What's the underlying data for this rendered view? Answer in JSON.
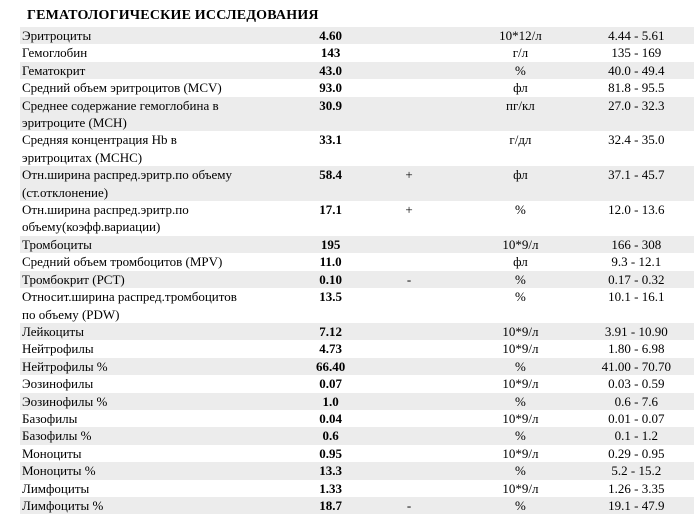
{
  "header": {
    "title": "ГЕМАТОЛОГИЧЕСКИЕ ИССЛЕДОВАНИЯ"
  },
  "table": {
    "rows": [
      {
        "name": [
          "Эритроциты"
        ],
        "value": "4.60",
        "unit": "10*12/л",
        "range": "4.44 - 5.61"
      },
      {
        "name": [
          "Гемоглобин"
        ],
        "value": "143",
        "unit": "г/л",
        "range": "135 - 169"
      },
      {
        "name": [
          "Гематокрит"
        ],
        "value": "43.0",
        "unit": "%",
        "range": "40.0 - 49.4"
      },
      {
        "name": [
          "Средний объем эритроцитов (MCV)"
        ],
        "value": "93.0",
        "unit": "фл",
        "range": "81.8 - 95.5"
      },
      {
        "name": [
          "Среднее содержание гемоглобина в",
          "эритроците (MCH)"
        ],
        "value": "30.9",
        "unit": "пг/кл",
        "range": "27.0 - 32.3"
      },
      {
        "name": [
          "Средняя концентрация Hb в",
          "эритроцитах (MCHC)"
        ],
        "value": "33.1",
        "unit": "г/дл",
        "range": "32.4 - 35.0"
      },
      {
        "name": [
          "Отн.ширина распред.эритр.по объему",
          "(ст.отклонение)"
        ],
        "value": "58.4",
        "flag": "+",
        "unit": "фл",
        "range": "37.1 - 45.7"
      },
      {
        "name": [
          "Отн.ширина распред.эритр.по",
          "объему(коэфф.вариации)"
        ],
        "value": "17.1",
        "flag": "+",
        "unit": "%",
        "range": "12.0 - 13.6"
      },
      {
        "name": [
          "Тромбоциты"
        ],
        "value": "195",
        "unit": "10*9/л",
        "range": "166 - 308"
      },
      {
        "name": [
          "Средний объем тромбоцитов (MPV)"
        ],
        "value": "11.0",
        "unit": "фл",
        "range": "9.3 - 12.1"
      },
      {
        "name": [
          "Тромбокрит (PCT)"
        ],
        "value": "0.10",
        "flag": "-",
        "unit": "%",
        "range": "0.17 - 0.32"
      },
      {
        "name": [
          "Относит.ширина распред.тромбоцитов",
          "по объему (PDW)"
        ],
        "value": "13.5",
        "unit": "%",
        "range": "10.1 - 16.1"
      },
      {
        "name": [
          "Лейкоциты"
        ],
        "value": "7.12",
        "unit": "10*9/л",
        "range": "3.91 - 10.90"
      },
      {
        "name": [
          "Нейтрофилы"
        ],
        "value": "4.73",
        "unit": "10*9/л",
        "range": "1.80 - 6.98"
      },
      {
        "name": [
          "Нейтрофилы %"
        ],
        "value": "66.40",
        "unit": "%",
        "range": "41.00 - 70.70"
      },
      {
        "name": [
          "Эозинофилы"
        ],
        "value": "0.07",
        "unit": "10*9/л",
        "range": "0.03 - 0.59"
      },
      {
        "name": [
          "Эозинофилы %"
        ],
        "value": "1.0",
        "unit": "%",
        "range": "0.6 - 7.6"
      },
      {
        "name": [
          "Базофилы"
        ],
        "value": "0.04",
        "unit": "10*9/л",
        "range": "0.01 - 0.07"
      },
      {
        "name": [
          "Базофилы %"
        ],
        "value": "0.6",
        "unit": "%",
        "range": "0.1 - 1.2"
      },
      {
        "name": [
          "Моноциты"
        ],
        "value": "0.95",
        "unit": "10*9/л",
        "range": "0.29 - 0.95"
      },
      {
        "name": [
          "Моноциты %"
        ],
        "value": "13.3",
        "unit": "%",
        "range": "5.2 - 15.2"
      },
      {
        "name": [
          "Лимфоциты"
        ],
        "value": "1.33",
        "unit": "10*9/л",
        "range": "1.26 - 3.35"
      },
      {
        "name": [
          "Лимфоциты %"
        ],
        "value": "18.7",
        "flag": "-",
        "unit": "%",
        "range": "19.1 - 47.9"
      }
    ]
  }
}
